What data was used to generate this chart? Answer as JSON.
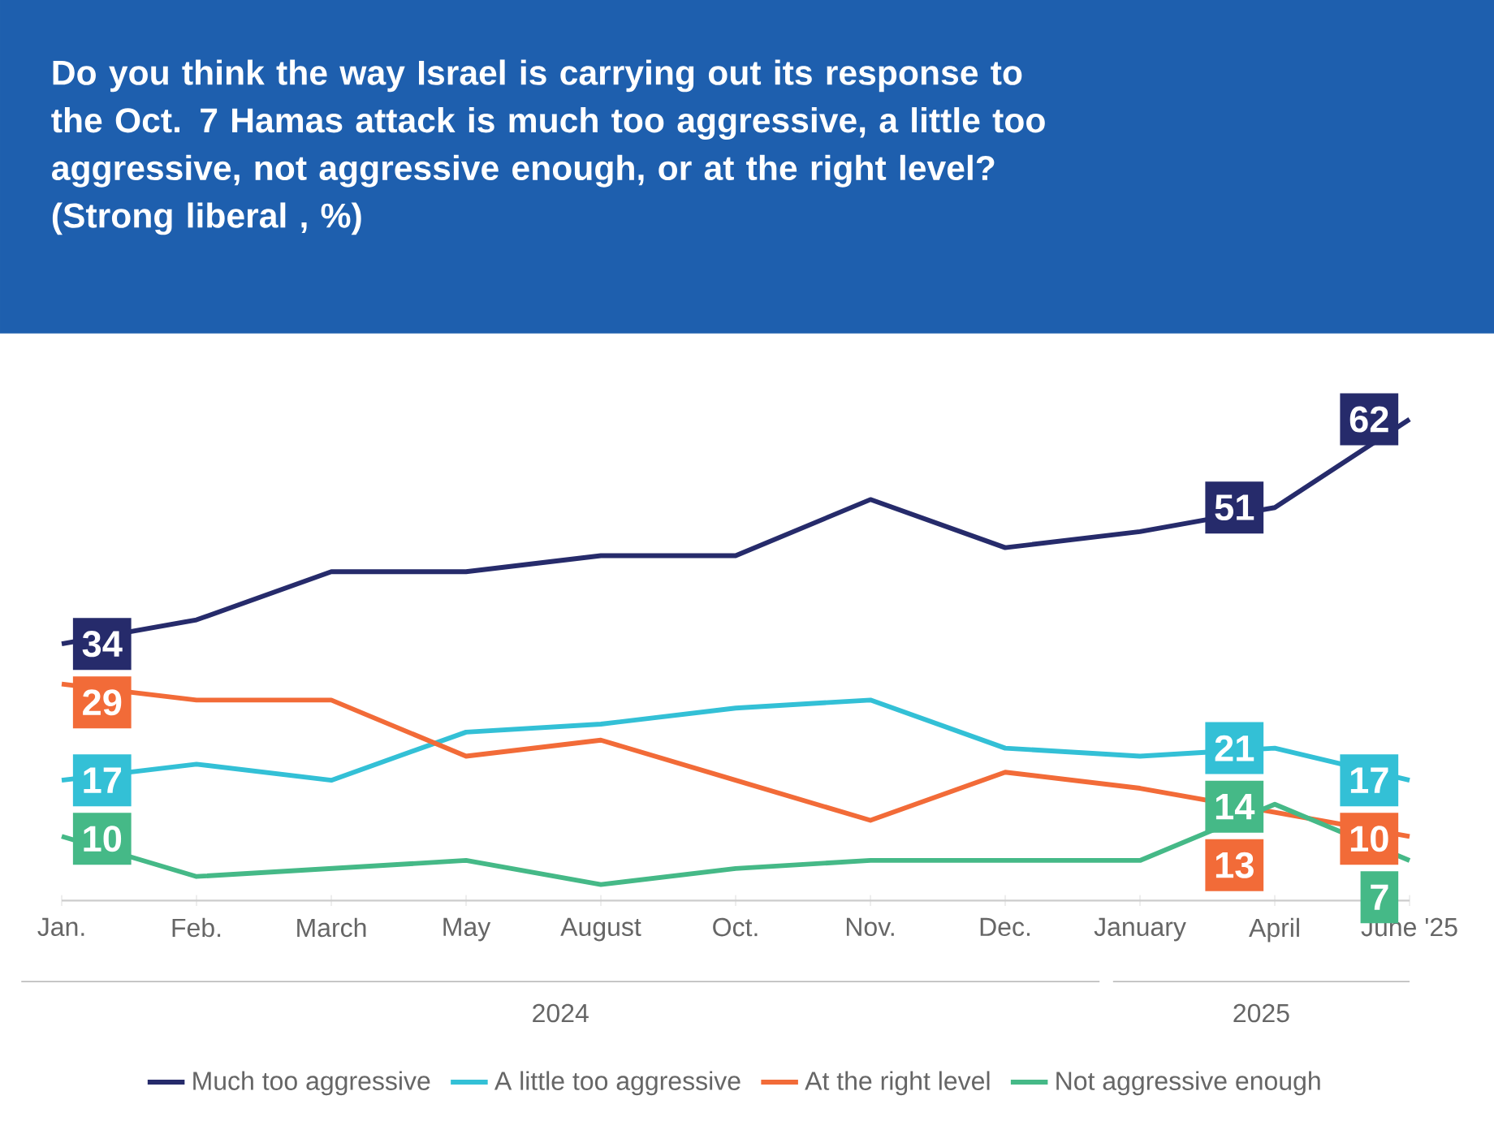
{
  "chart_data": {
    "type": "line",
    "title": "Do you think the way Israel is carrying out its response to the Oct. 7 Hamas attack is much too aggressive, a little too aggressive, not aggressive enough, or at the right level? (Strong liberal , %)",
    "categories": [
      "Jan.",
      "Feb.",
      "March",
      "May",
      "August",
      "Oct.",
      "Nov.",
      "Dec.",
      "January",
      "April",
      "June '25"
    ],
    "series": [
      {
        "name": "Much too aggressive",
        "color": "#262b6b",
        "values": [
          34,
          37,
          43,
          43,
          45,
          45,
          52,
          46,
          48,
          51,
          62
        ],
        "value_labels": [
          "34",
          null,
          null,
          null,
          null,
          null,
          null,
          null,
          null,
          "51",
          "62"
        ]
      },
      {
        "name": "A little too aggressive",
        "color": "#33c0d6",
        "values": [
          17,
          19,
          17,
          23,
          24,
          26,
          27,
          21,
          20,
          21,
          17
        ],
        "value_labels": [
          "17",
          null,
          null,
          null,
          null,
          null,
          null,
          null,
          null,
          "21",
          "17"
        ]
      },
      {
        "name": "At the right level",
        "color": "#f26b38",
        "values": [
          29,
          27,
          27,
          20,
          22,
          17,
          12,
          18,
          16,
          13,
          10
        ],
        "value_labels": [
          "29",
          null,
          null,
          null,
          null,
          null,
          null,
          null,
          null,
          "13",
          "10"
        ]
      },
      {
        "name": "Not aggressive enough",
        "color": "#45b987",
        "values": [
          10,
          5,
          6,
          7,
          4,
          6,
          7,
          7,
          7,
          14,
          7
        ],
        "value_labels": [
          "10",
          null,
          null,
          null,
          null,
          null,
          null,
          null,
          null,
          "14",
          "7"
        ]
      }
    ],
    "annotations": [
      "2024",
      "2025"
    ],
    "legend": "bottom"
  }
}
